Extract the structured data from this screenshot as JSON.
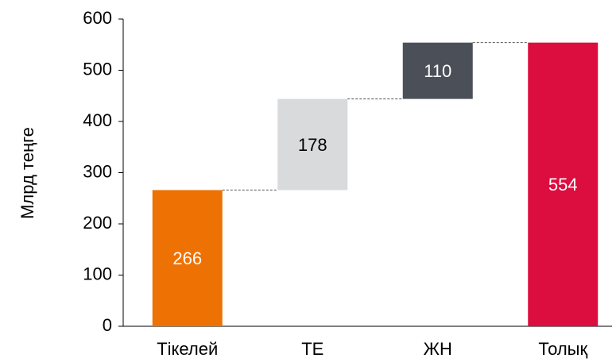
{
  "chart_data": {
    "type": "waterfall",
    "categories": [
      "Тікелей",
      "ТЕ",
      "ЖН",
      "Толық"
    ],
    "values": [
      266,
      178,
      110,
      554
    ],
    "totals": [
      3
    ],
    "colors": [
      "#ee7203",
      "#d9dadb",
      "#4b5058",
      "#dc0d3f"
    ],
    "label_colors": [
      "#ffffff",
      "#000000",
      "#ffffff",
      "#ffffff"
    ],
    "ylabel": "Млрд теңге",
    "ylim": [
      0,
      600
    ],
    "yticks": [
      0,
      100,
      200,
      300,
      400,
      500,
      600
    ]
  }
}
